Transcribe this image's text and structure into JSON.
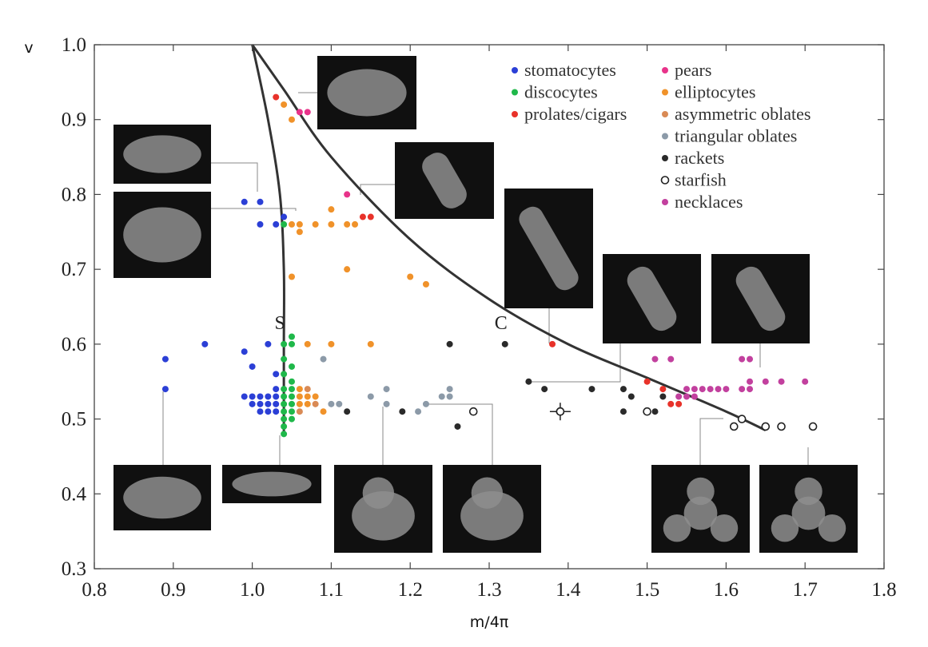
{
  "chart_data": {
    "type": "scatter",
    "xlabel": "m/4π",
    "ylabel": "v",
    "xlim": [
      0.8,
      1.8
    ],
    "ylim": [
      0.3,
      1.0
    ],
    "x_ticks": [
      "0.8",
      "0.9",
      "1.0",
      "1.1",
      "1.2",
      "1.3",
      "1.4",
      "1.5",
      "1.6",
      "1.7",
      "1.8"
    ],
    "y_ticks": [
      "0.3",
      "0.4",
      "0.5",
      "0.6",
      "0.7",
      "0.8",
      "0.9",
      "1.0"
    ],
    "grid": false,
    "legend_position": "top-right",
    "curve_labels": [
      {
        "text": "S",
        "x": 1.035,
        "y": 0.633
      },
      {
        "text": "C",
        "x": 1.315,
        "y": 0.633
      }
    ],
    "curves": [
      {
        "name": "S",
        "points": [
          [
            1.0,
            1.0
          ],
          [
            1.02,
            0.9
          ],
          [
            1.035,
            0.8
          ],
          [
            1.04,
            0.7
          ],
          [
            1.04,
            0.6
          ],
          [
            1.04,
            0.5
          ],
          [
            1.04,
            0.48
          ]
        ]
      },
      {
        "name": "C",
        "points": [
          [
            1.0,
            1.0
          ],
          [
            1.04,
            0.94
          ],
          [
            1.1,
            0.85
          ],
          [
            1.2,
            0.74
          ],
          [
            1.3,
            0.66
          ],
          [
            1.4,
            0.6
          ],
          [
            1.5,
            0.555
          ],
          [
            1.6,
            0.51
          ],
          [
            1.65,
            0.485
          ]
        ]
      }
    ],
    "series": [
      {
        "name": "stomatocytes",
        "color": "#2b3fd6",
        "points": [
          [
            0.89,
            0.58
          ],
          [
            0.89,
            0.54
          ],
          [
            0.94,
            0.6
          ],
          [
            0.99,
            0.59
          ],
          [
            1.0,
            0.57
          ],
          [
            1.02,
            0.6
          ],
          [
            1.03,
            0.56
          ],
          [
            0.99,
            0.79
          ],
          [
            1.01,
            0.79
          ],
          [
            1.01,
            0.76
          ],
          [
            1.03,
            0.76
          ],
          [
            1.04,
            0.77
          ],
          [
            0.99,
            0.53
          ],
          [
            1.0,
            0.53
          ],
          [
            1.01,
            0.53
          ],
          [
            1.02,
            0.53
          ],
          [
            1.03,
            0.53
          ],
          [
            1.0,
            0.52
          ],
          [
            1.01,
            0.52
          ],
          [
            1.02,
            0.52
          ],
          [
            1.03,
            0.52
          ],
          [
            1.01,
            0.51
          ],
          [
            1.02,
            0.51
          ],
          [
            1.03,
            0.51
          ],
          [
            1.03,
            0.54
          ]
        ]
      },
      {
        "name": "discocytes",
        "color": "#1fb84a",
        "points": [
          [
            1.04,
            0.6
          ],
          [
            1.05,
            0.61
          ],
          [
            1.05,
            0.6
          ],
          [
            1.04,
            0.58
          ],
          [
            1.05,
            0.57
          ],
          [
            1.04,
            0.56
          ],
          [
            1.05,
            0.55
          ],
          [
            1.04,
            0.54
          ],
          [
            1.05,
            0.54
          ],
          [
            1.04,
            0.53
          ],
          [
            1.05,
            0.53
          ],
          [
            1.04,
            0.52
          ],
          [
            1.05,
            0.52
          ],
          [
            1.04,
            0.51
          ],
          [
            1.05,
            0.51
          ],
          [
            1.04,
            0.5
          ],
          [
            1.05,
            0.5
          ],
          [
            1.04,
            0.49
          ],
          [
            1.04,
            0.48
          ],
          [
            1.04,
            0.76
          ]
        ]
      },
      {
        "name": "prolates/cigars",
        "color": "#e8322a",
        "points": [
          [
            1.03,
            0.93
          ],
          [
            1.14,
            0.77
          ],
          [
            1.15,
            0.77
          ],
          [
            1.38,
            0.6
          ],
          [
            1.5,
            0.55
          ],
          [
            1.52,
            0.54
          ],
          [
            1.53,
            0.52
          ],
          [
            1.54,
            0.52
          ]
        ]
      },
      {
        "name": "pears",
        "color": "#e8338a",
        "points": [
          [
            1.06,
            0.91
          ],
          [
            1.07,
            0.91
          ],
          [
            1.12,
            0.8
          ]
        ]
      },
      {
        "name": "elliptocytes",
        "color": "#f0922a",
        "points": [
          [
            1.04,
            0.92
          ],
          [
            1.05,
            0.9
          ],
          [
            1.05,
            0.76
          ],
          [
            1.06,
            0.76
          ],
          [
            1.06,
            0.75
          ],
          [
            1.08,
            0.76
          ],
          [
            1.1,
            0.76
          ],
          [
            1.1,
            0.78
          ],
          [
            1.12,
            0.76
          ],
          [
            1.13,
            0.76
          ],
          [
            1.12,
            0.7
          ],
          [
            1.05,
            0.69
          ],
          [
            1.2,
            0.69
          ],
          [
            1.22,
            0.68
          ],
          [
            1.07,
            0.6
          ],
          [
            1.1,
            0.6
          ],
          [
            1.15,
            0.6
          ],
          [
            1.06,
            0.53
          ],
          [
            1.07,
            0.53
          ],
          [
            1.08,
            0.53
          ],
          [
            1.06,
            0.52
          ],
          [
            1.07,
            0.52
          ],
          [
            1.06,
            0.54
          ],
          [
            1.09,
            0.51
          ]
        ]
      },
      {
        "name": "asymmetric oblates",
        "color": "#d98a55",
        "points": [
          [
            1.07,
            0.54
          ],
          [
            1.06,
            0.51
          ],
          [
            1.08,
            0.52
          ]
        ]
      },
      {
        "name": "triangular oblates",
        "color": "#8c9aa8",
        "points": [
          [
            1.09,
            0.58
          ],
          [
            1.1,
            0.52
          ],
          [
            1.11,
            0.52
          ],
          [
            1.15,
            0.53
          ],
          [
            1.17,
            0.54
          ],
          [
            1.17,
            0.52
          ],
          [
            1.21,
            0.51
          ],
          [
            1.24,
            0.53
          ],
          [
            1.25,
            0.53
          ],
          [
            1.25,
            0.54
          ],
          [
            1.22,
            0.52
          ]
        ]
      },
      {
        "name": "rackets",
        "color": "#2a2a2a",
        "points": [
          [
            1.12,
            0.51
          ],
          [
            1.19,
            0.51
          ],
          [
            1.25,
            0.6
          ],
          [
            1.26,
            0.49
          ],
          [
            1.32,
            0.6
          ],
          [
            1.35,
            0.55
          ],
          [
            1.37,
            0.54
          ],
          [
            1.43,
            0.54
          ],
          [
            1.47,
            0.54
          ],
          [
            1.48,
            0.53
          ],
          [
            1.47,
            0.51
          ],
          [
            1.51,
            0.51
          ],
          [
            1.52,
            0.53
          ]
        ]
      },
      {
        "name": "starfish",
        "color": "#222222",
        "open": true,
        "points": [
          [
            1.28,
            0.51
          ],
          [
            1.39,
            0.51
          ],
          [
            1.5,
            0.51
          ],
          [
            1.61,
            0.49
          ],
          [
            1.62,
            0.5
          ],
          [
            1.65,
            0.49
          ],
          [
            1.67,
            0.49
          ],
          [
            1.71,
            0.49
          ]
        ]
      },
      {
        "name": "necklaces",
        "color": "#c2409e",
        "points": [
          [
            1.51,
            0.58
          ],
          [
            1.53,
            0.58
          ],
          [
            1.54,
            0.53
          ],
          [
            1.55,
            0.53
          ],
          [
            1.56,
            0.53
          ],
          [
            1.55,
            0.54
          ],
          [
            1.56,
            0.54
          ],
          [
            1.57,
            0.54
          ],
          [
            1.58,
            0.54
          ],
          [
            1.59,
            0.54
          ],
          [
            1.6,
            0.54
          ],
          [
            1.62,
            0.54
          ],
          [
            1.63,
            0.54
          ],
          [
            1.62,
            0.58
          ],
          [
            1.63,
            0.58
          ],
          [
            1.63,
            0.55
          ],
          [
            1.65,
            0.55
          ],
          [
            1.67,
            0.55
          ],
          [
            1.7,
            0.55
          ]
        ]
      }
    ]
  }
}
